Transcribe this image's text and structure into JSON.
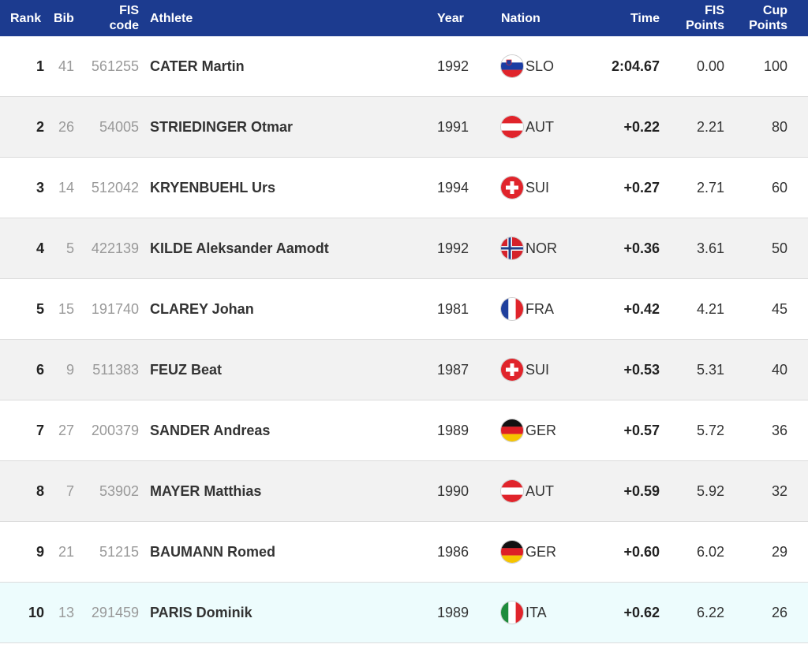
{
  "colors": {
    "header_bg": "#1c3b8f",
    "row_alt": "#f2f2f2",
    "row_highlight": "#edfcfd"
  },
  "headers": {
    "rank": "Rank",
    "bib": "Bib",
    "fis_code_1": "FIS",
    "fis_code_2": "code",
    "athlete": "Athlete",
    "year": "Year",
    "nation": "Nation",
    "time": "Time",
    "fis_points_1": "FIS",
    "fis_points_2": "Points",
    "cup_points_1": "Cup",
    "cup_points_2": "Points"
  },
  "rows": [
    {
      "rank": "1",
      "bib": "41",
      "fis_code": "561255",
      "athlete": "CATER Martin",
      "year": "1992",
      "flag": "slovenia-flag-icon",
      "nation": "SLO",
      "time": "2:04.67",
      "fis_points": "0.00",
      "cup_points": "100"
    },
    {
      "rank": "2",
      "bib": "26",
      "fis_code": "54005",
      "athlete": "STRIEDINGER Otmar",
      "year": "1991",
      "flag": "austria-flag-icon",
      "nation": "AUT",
      "time": "+0.22",
      "fis_points": "2.21",
      "cup_points": "80"
    },
    {
      "rank": "3",
      "bib": "14",
      "fis_code": "512042",
      "athlete": "KRYENBUEHL Urs",
      "year": "1994",
      "flag": "switzerland-flag-icon",
      "nation": "SUI",
      "time": "+0.27",
      "fis_points": "2.71",
      "cup_points": "60"
    },
    {
      "rank": "4",
      "bib": "5",
      "fis_code": "422139",
      "athlete": "KILDE Aleksander Aamodt",
      "year": "1992",
      "flag": "norway-flag-icon",
      "nation": "NOR",
      "time": "+0.36",
      "fis_points": "3.61",
      "cup_points": "50"
    },
    {
      "rank": "5",
      "bib": "15",
      "fis_code": "191740",
      "athlete": "CLAREY Johan",
      "year": "1981",
      "flag": "france-flag-icon",
      "nation": "FRA",
      "time": "+0.42",
      "fis_points": "4.21",
      "cup_points": "45"
    },
    {
      "rank": "6",
      "bib": "9",
      "fis_code": "511383",
      "athlete": "FEUZ Beat",
      "year": "1987",
      "flag": "switzerland-flag-icon",
      "nation": "SUI",
      "time": "+0.53",
      "fis_points": "5.31",
      "cup_points": "40"
    },
    {
      "rank": "7",
      "bib": "27",
      "fis_code": "200379",
      "athlete": "SANDER Andreas",
      "year": "1989",
      "flag": "germany-flag-icon",
      "nation": "GER",
      "time": "+0.57",
      "fis_points": "5.72",
      "cup_points": "36"
    },
    {
      "rank": "8",
      "bib": "7",
      "fis_code": "53902",
      "athlete": "MAYER Matthias",
      "year": "1990",
      "flag": "austria-flag-icon",
      "nation": "AUT",
      "time": "+0.59",
      "fis_points": "5.92",
      "cup_points": "32"
    },
    {
      "rank": "9",
      "bib": "21",
      "fis_code": "51215",
      "athlete": "BAUMANN Romed",
      "year": "1986",
      "flag": "germany-flag-icon",
      "nation": "GER",
      "time": "+0.60",
      "fis_points": "6.02",
      "cup_points": "29"
    },
    {
      "rank": "10",
      "bib": "13",
      "fis_code": "291459",
      "athlete": "PARIS Dominik",
      "year": "1989",
      "flag": "italy-flag-icon",
      "nation": "ITA",
      "time": "+0.62",
      "fis_points": "6.22",
      "cup_points": "26"
    }
  ]
}
